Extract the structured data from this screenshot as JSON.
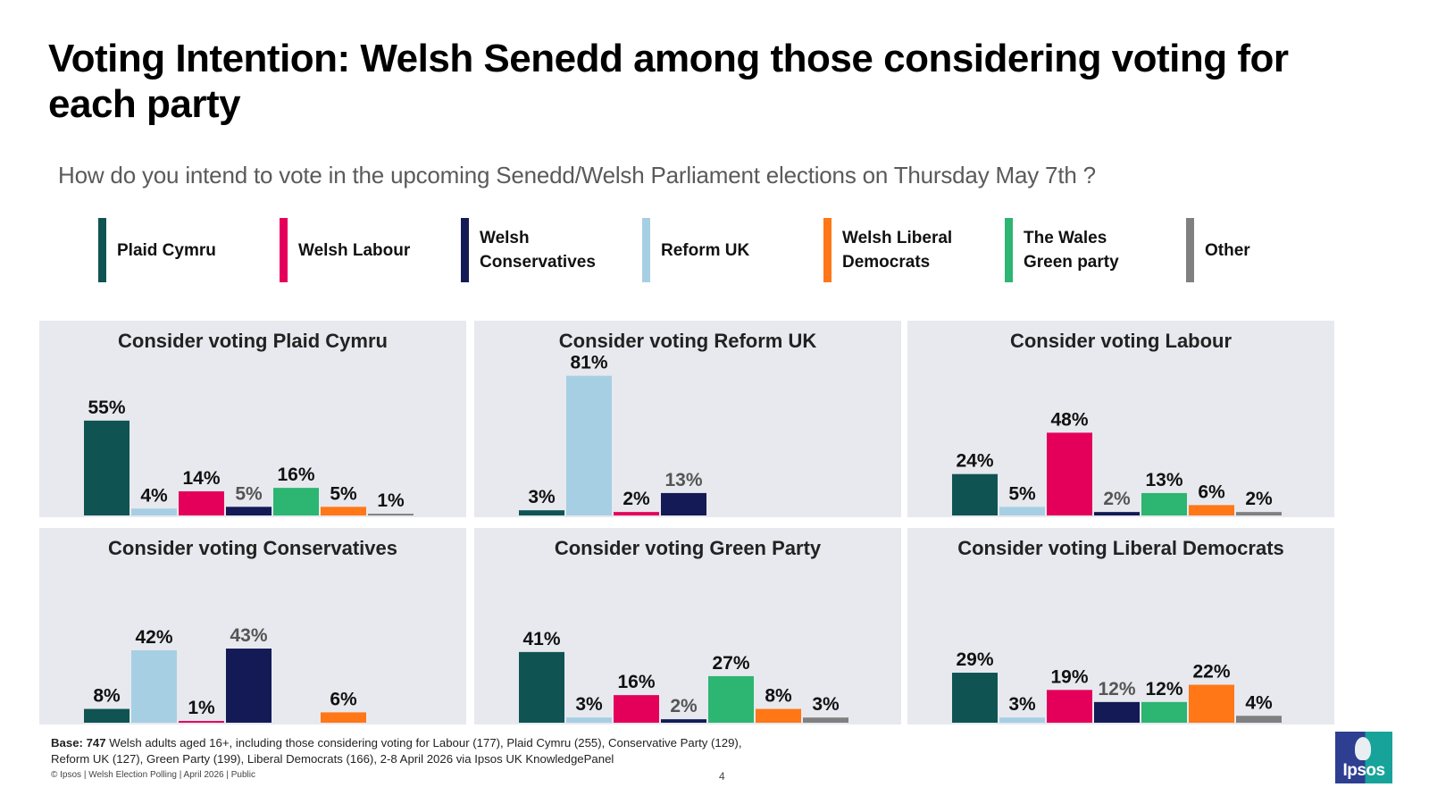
{
  "title": "Voting Intention: Welsh Senedd among those considering voting for each party",
  "subtitle": "How  do you intend to vote in the upcoming Senedd/Welsh Parliament elections on Thursday May 7th ?",
  "legend": [
    {
      "label": "Plaid Cymru",
      "color": "#0f5453"
    },
    {
      "label": "Welsh Labour",
      "color": "#e4005a"
    },
    {
      "label": "Welsh\nConservatives",
      "color": "#131a55"
    },
    {
      "label": "Reform UK",
      "color": "#a6cfe3"
    },
    {
      "label": "Welsh Liberal\nDemocrats",
      "color": "#ff7716"
    },
    {
      "label": "The Wales\nGreen party",
      "color": "#2db572"
    },
    {
      "label": "Other",
      "color": "#808080"
    }
  ],
  "chart_data": [
    {
      "type": "bar",
      "title": "Consider voting Plaid Cymru",
      "categories": [
        "Plaid Cymru",
        "Reform UK",
        "Welsh Labour",
        "Welsh Conservatives",
        "The Wales Green party",
        "Welsh Liberal Democrats",
        "Other"
      ],
      "values": [
        55,
        4,
        14,
        5,
        16,
        5,
        1
      ],
      "labels": [
        "55%",
        "4%",
        "14%",
        "5%",
        "16%",
        "5%",
        "1%"
      ],
      "xlabel": "",
      "ylabel": "",
      "ylim": [
        0,
        100
      ],
      "grid": false
    },
    {
      "type": "bar",
      "title": "Consider voting Reform UK",
      "categories": [
        "Plaid Cymru",
        "Reform UK",
        "Welsh Labour",
        "Welsh Conservatives"
      ],
      "values": [
        3,
        81,
        2,
        13
      ],
      "labels": [
        "3%",
        "81%",
        "2%",
        "13%"
      ],
      "xlabel": "",
      "ylabel": "",
      "ylim": [
        0,
        100
      ],
      "grid": false
    },
    {
      "type": "bar",
      "title": "Consider voting Labour",
      "categories": [
        "Plaid Cymru",
        "Reform UK",
        "Welsh Labour",
        "Welsh Conservatives",
        "The Wales Green party",
        "Welsh Liberal Democrats",
        "Other"
      ],
      "values": [
        24,
        5,
        48,
        2,
        13,
        6,
        2
      ],
      "labels": [
        "24%",
        "5%",
        "48%",
        "2%",
        "13%",
        "6%",
        "2%"
      ],
      "xlabel": "",
      "ylabel": "",
      "ylim": [
        0,
        100
      ],
      "grid": false
    },
    {
      "type": "bar",
      "title": "Consider voting Conservatives",
      "categories": [
        "Plaid Cymru",
        "Reform UK",
        "Welsh Labour",
        "Welsh Conservatives",
        "The Wales Green party",
        "Welsh Liberal Democrats",
        "Other"
      ],
      "values": [
        8,
        42,
        1,
        43,
        null,
        6,
        null
      ],
      "labels": [
        "8%",
        "42%",
        "1%",
        "43%",
        "",
        "6%",
        ""
      ],
      "xlabel": "",
      "ylabel": "",
      "ylim": [
        0,
        100
      ],
      "grid": false
    },
    {
      "type": "bar",
      "title": "Consider voting Green Party",
      "categories": [
        "Plaid Cymru",
        "Reform UK",
        "Welsh Labour",
        "Welsh Conservatives",
        "The Wales Green party",
        "Welsh Liberal Democrats",
        "Other"
      ],
      "values": [
        41,
        3,
        16,
        2,
        27,
        8,
        3
      ],
      "labels": [
        "41%",
        "3%",
        "16%",
        "2%",
        "27%",
        "8%",
        "3%"
      ],
      "xlabel": "",
      "ylabel": "",
      "ylim": [
        0,
        100
      ],
      "grid": false
    },
    {
      "type": "bar",
      "title": "Consider voting Liberal Democrats",
      "categories": [
        "Plaid Cymru",
        "Reform UK",
        "Welsh Labour",
        "Welsh Conservatives",
        "The Wales Green party",
        "Welsh Liberal Democrats",
        "Other"
      ],
      "values": [
        29,
        3,
        19,
        12,
        12,
        22,
        4
      ],
      "labels": [
        "29%",
        "3%",
        "19%",
        "12%",
        "12%",
        "22%",
        "4%"
      ],
      "xlabel": "",
      "ylabel": "",
      "ylim": [
        0,
        100
      ],
      "grid": false
    }
  ],
  "bar_colors": {
    "Plaid Cymru": "#0f5453",
    "Reform UK": "#a6cfe3",
    "Welsh Labour": "#e4005a",
    "Welsh Conservatives": "#131a55",
    "The Wales Green party": "#2db572",
    "Welsh Liberal Democrats": "#ff7716",
    "Other": "#808080"
  },
  "label_colors": {
    "default": "#111111",
    "Welsh Conservatives": "#555555"
  },
  "footer": {
    "base_label": "Base: 747",
    "base_text": " Welsh adults aged 16+, including those considering voting for Labour (177), Plaid Cymru (255), Conservative Party (129), Reform UK (127), Green Party (199), Liberal Democrats (166), 2-8 April 2026 via Ipsos UK KnowledgePanel",
    "copyright": "© Ipsos | Welsh Election Polling | April 2026 | Public",
    "page_number": "4"
  },
  "logo": {
    "text": "Ipsos"
  }
}
